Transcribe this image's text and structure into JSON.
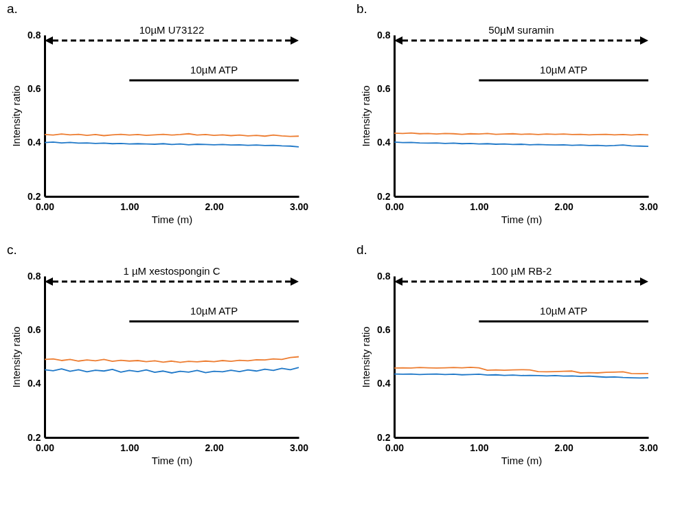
{
  "chart_data": [
    {
      "type": "line",
      "title": "a.",
      "xlabel": "Time (m)",
      "ylabel": "Intensity ratio",
      "x": [
        0,
        0.1,
        0.2,
        0.3,
        0.4,
        0.5,
        0.6,
        0.7,
        0.8,
        0.9,
        1,
        1.1,
        1.2,
        1.3,
        1.4,
        1.5,
        1.6,
        1.7,
        1.8,
        1.9,
        2,
        2.1,
        2.2,
        2.3,
        2.4,
        2.5,
        2.6,
        2.7,
        2.8,
        2.9,
        3
      ],
      "xlim": [
        0,
        3
      ],
      "xticks": [
        {
          "value": 0,
          "label": "0.00"
        },
        {
          "value": 1,
          "label": "1.00"
        },
        {
          "value": 2,
          "label": "2.00"
        },
        {
          "value": 3,
          "label": "3.00"
        }
      ],
      "ylim": [
        0.2,
        0.8
      ],
      "yticks": [
        0.2,
        0.4,
        0.6,
        0.8
      ],
      "series": [
        {
          "color": "#ed7d31",
          "values": [
            0.43,
            0.428,
            0.432,
            0.429,
            0.431,
            0.427,
            0.43,
            0.426,
            0.429,
            0.431,
            0.428,
            0.43,
            0.427,
            0.429,
            0.431,
            0.428,
            0.43,
            0.433,
            0.428,
            0.43,
            0.427,
            0.429,
            0.426,
            0.428,
            0.425,
            0.427,
            0.424,
            0.428,
            0.425,
            0.423,
            0.424
          ]
        },
        {
          "color": "#1f78c8",
          "values": [
            0.4,
            0.402,
            0.399,
            0.401,
            0.398,
            0.399,
            0.397,
            0.398,
            0.396,
            0.397,
            0.395,
            0.396,
            0.395,
            0.394,
            0.396,
            0.393,
            0.395,
            0.392,
            0.394,
            0.393,
            0.392,
            0.393,
            0.391,
            0.392,
            0.39,
            0.391,
            0.389,
            0.39,
            0.388,
            0.387,
            0.384
          ]
        }
      ],
      "annotations": [
        "10µM U73122",
        "10µM ATP"
      ]
    },
    {
      "type": "line",
      "title": "b.",
      "xlabel": "Time (m)",
      "ylabel": "Intensity ratio",
      "x": [
        0,
        0.1,
        0.2,
        0.3,
        0.4,
        0.5,
        0.6,
        0.7,
        0.8,
        0.9,
        1,
        1.1,
        1.2,
        1.3,
        1.4,
        1.5,
        1.6,
        1.7,
        1.8,
        1.9,
        2,
        2.1,
        2.2,
        2.3,
        2.4,
        2.5,
        2.6,
        2.7,
        2.8,
        2.9,
        3
      ],
      "xlim": [
        0,
        3
      ],
      "xticks": [
        {
          "value": 0,
          "label": "0.00"
        },
        {
          "value": 1,
          "label": "1.00"
        },
        {
          "value": 2,
          "label": "2.00"
        },
        {
          "value": 3,
          "label": "3.00"
        }
      ],
      "ylim": [
        0.2,
        0.8
      ],
      "yticks": [
        0.2,
        0.4,
        0.6,
        0.8
      ],
      "series": [
        {
          "color": "#ed7d31",
          "values": [
            0.435,
            0.434,
            0.436,
            0.433,
            0.434,
            0.432,
            0.434,
            0.433,
            0.431,
            0.433,
            0.432,
            0.434,
            0.431,
            0.432,
            0.433,
            0.431,
            0.432,
            0.43,
            0.432,
            0.431,
            0.432,
            0.43,
            0.431,
            0.429,
            0.43,
            0.431,
            0.429,
            0.43,
            0.428,
            0.43,
            0.429
          ]
        },
        {
          "color": "#1f78c8",
          "values": [
            0.402,
            0.4,
            0.401,
            0.399,
            0.398,
            0.399,
            0.397,
            0.398,
            0.396,
            0.397,
            0.395,
            0.396,
            0.394,
            0.395,
            0.393,
            0.394,
            0.392,
            0.393,
            0.392,
            0.391,
            0.392,
            0.39,
            0.391,
            0.389,
            0.39,
            0.388,
            0.389,
            0.391,
            0.388,
            0.387,
            0.386
          ]
        }
      ],
      "annotations": [
        "50µM suramin",
        "10µM ATP"
      ]
    },
    {
      "type": "line",
      "title": "c.",
      "xlabel": "Time (m)",
      "ylabel": "Intensity ratio",
      "x": [
        0,
        0.1,
        0.2,
        0.3,
        0.4,
        0.5,
        0.6,
        0.7,
        0.8,
        0.9,
        1,
        1.1,
        1.2,
        1.3,
        1.4,
        1.5,
        1.6,
        1.7,
        1.8,
        1.9,
        2,
        2.1,
        2.2,
        2.3,
        2.4,
        2.5,
        2.6,
        2.7,
        2.8,
        2.9,
        3
      ],
      "xlim": [
        0,
        3
      ],
      "xticks": [
        {
          "value": 0,
          "label": "0.00"
        },
        {
          "value": 1,
          "label": "1.00"
        },
        {
          "value": 2,
          "label": "2.00"
        },
        {
          "value": 3,
          "label": "3.00"
        }
      ],
      "ylim": [
        0.2,
        0.8
      ],
      "yticks": [
        0.2,
        0.4,
        0.6,
        0.8
      ],
      "series": [
        {
          "color": "#ed7d31",
          "values": [
            0.49,
            0.492,
            0.486,
            0.49,
            0.484,
            0.488,
            0.485,
            0.49,
            0.483,
            0.487,
            0.484,
            0.486,
            0.482,
            0.485,
            0.48,
            0.484,
            0.479,
            0.483,
            0.481,
            0.484,
            0.482,
            0.486,
            0.483,
            0.487,
            0.485,
            0.489,
            0.488,
            0.492,
            0.49,
            0.497,
            0.5
          ]
        },
        {
          "color": "#1f78c8",
          "values": [
            0.452,
            0.448,
            0.455,
            0.446,
            0.452,
            0.444,
            0.45,
            0.447,
            0.453,
            0.443,
            0.449,
            0.445,
            0.451,
            0.442,
            0.447,
            0.44,
            0.446,
            0.443,
            0.449,
            0.441,
            0.446,
            0.444,
            0.45,
            0.445,
            0.451,
            0.447,
            0.454,
            0.449,
            0.457,
            0.452,
            0.46
          ]
        }
      ],
      "annotations": [
        "1 µM xestospongin C",
        "10µM ATP"
      ]
    },
    {
      "type": "line",
      "title": "d.",
      "xlabel": "Time (m)",
      "ylabel": "Intensity ratio",
      "x": [
        0,
        0.1,
        0.2,
        0.3,
        0.4,
        0.5,
        0.6,
        0.7,
        0.8,
        0.9,
        1,
        1.1,
        1.2,
        1.3,
        1.4,
        1.5,
        1.6,
        1.7,
        1.8,
        1.9,
        2,
        2.1,
        2.2,
        2.3,
        2.4,
        2.5,
        2.6,
        2.7,
        2.8,
        2.9,
        3
      ],
      "xlim": [
        0,
        3
      ],
      "xticks": [
        {
          "value": 0,
          "label": "0.00"
        },
        {
          "value": 1,
          "label": "1.00"
        },
        {
          "value": 2,
          "label": "2.00"
        },
        {
          "value": 3,
          "label": "3.00"
        }
      ],
      "ylim": [
        0.2,
        0.8
      ],
      "yticks": [
        0.2,
        0.4,
        0.6,
        0.8
      ],
      "series": [
        {
          "color": "#ed7d31",
          "values": [
            0.458,
            0.459,
            0.458,
            0.46,
            0.459,
            0.458,
            0.459,
            0.46,
            0.459,
            0.461,
            0.459,
            0.45,
            0.451,
            0.45,
            0.451,
            0.452,
            0.451,
            0.445,
            0.444,
            0.445,
            0.446,
            0.447,
            0.44,
            0.441,
            0.44,
            0.442,
            0.443,
            0.444,
            0.438,
            0.437,
            0.438
          ]
        },
        {
          "color": "#1f78c8",
          "values": [
            0.436,
            0.435,
            0.436,
            0.434,
            0.435,
            0.436,
            0.434,
            0.435,
            0.433,
            0.434,
            0.435,
            0.432,
            0.433,
            0.431,
            0.432,
            0.43,
            0.431,
            0.43,
            0.429,
            0.43,
            0.428,
            0.429,
            0.427,
            0.428,
            0.426,
            0.424,
            0.425,
            0.423,
            0.422,
            0.421,
            0.422
          ]
        }
      ],
      "annotations": [
        "100 µM RB-2",
        "10µM ATP"
      ]
    }
  ]
}
